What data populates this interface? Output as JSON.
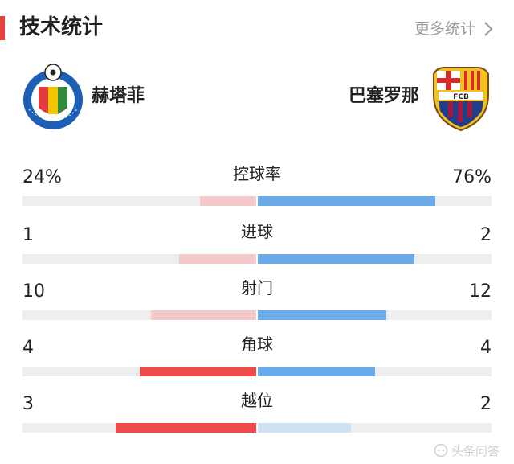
{
  "header": {
    "title": "技术统计",
    "more_label": "更多统计"
  },
  "teams": {
    "home": {
      "name": "赫塔菲",
      "logo_text": "GETAFE C.F. S.A.D."
    },
    "away": {
      "name": "巴塞罗那",
      "logo_text": "FCB"
    }
  },
  "stats": [
    {
      "label": "控球率",
      "home": "24%",
      "away": "76%",
      "home_share": 0.24,
      "away_share": 0.76,
      "leader": "away"
    },
    {
      "label": "进球",
      "home": "1",
      "away": "2",
      "home_share": 0.33,
      "away_share": 0.67,
      "leader": "away"
    },
    {
      "label": "射门",
      "home": "10",
      "away": "12",
      "home_share": 0.45,
      "away_share": 0.55,
      "leader": "away"
    },
    {
      "label": "角球",
      "home": "4",
      "away": "4",
      "home_share": 0.5,
      "away_share": 0.5,
      "leader": "tie"
    },
    {
      "label": "越位",
      "home": "3",
      "away": "2",
      "home_share": 0.6,
      "away_share": 0.4,
      "leader": "home"
    }
  ],
  "watermark": {
    "text": "头条问答"
  },
  "colors": {
    "accent": "#e8423c",
    "home_strong": "#ef4a49",
    "home_weak": "#f5c9c9",
    "away_strong": "#6baae8",
    "away_weak": "#cfe0f3",
    "track": "#eeeeee"
  }
}
